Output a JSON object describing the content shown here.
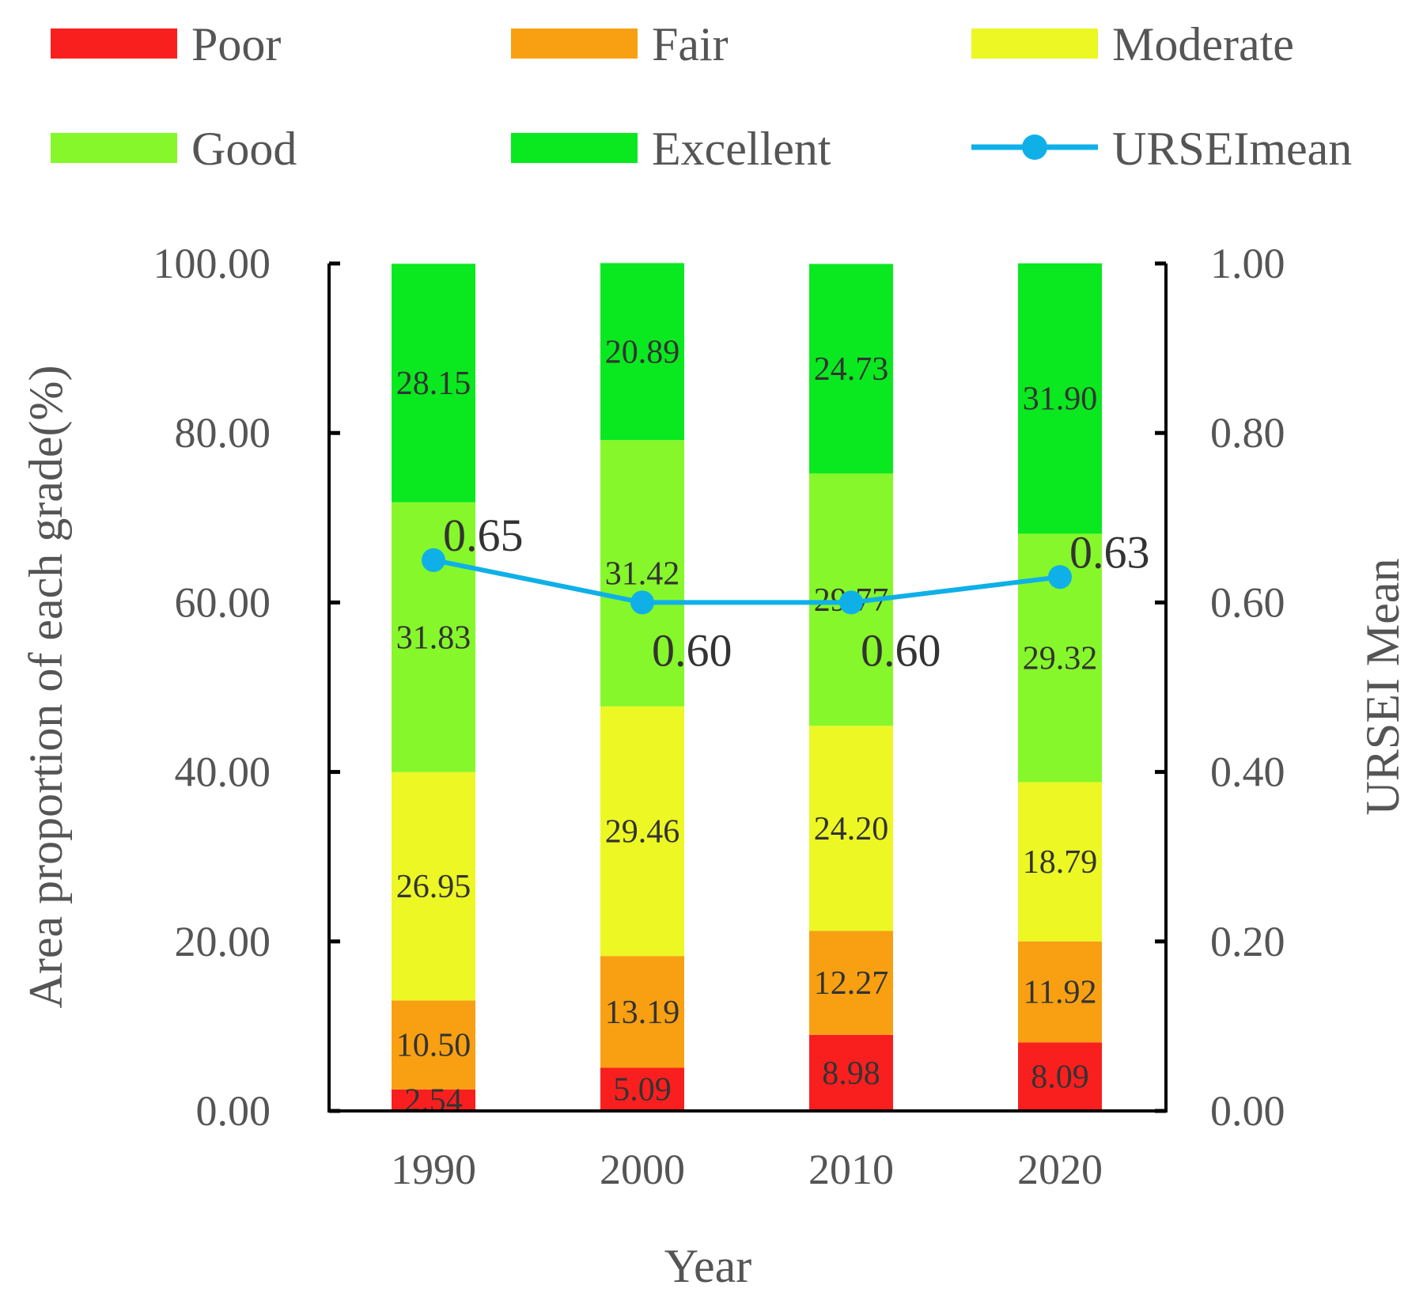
{
  "chart_data": {
    "type": "bar",
    "stacked": true,
    "categories": [
      "1990",
      "2000",
      "2010",
      "2020"
    ],
    "series": [
      {
        "name": "Poor",
        "color": "#f91f1f",
        "values": [
          2.54,
          5.09,
          8.98,
          8.09
        ]
      },
      {
        "name": "Fair",
        "color": "#f8a012",
        "values": [
          10.5,
          13.19,
          12.27,
          11.92
        ]
      },
      {
        "name": "Moderate",
        "color": "#ecf724",
        "values": [
          26.95,
          29.46,
          24.2,
          18.79
        ]
      },
      {
        "name": "Good",
        "color": "#86f72a",
        "values": [
          31.83,
          31.42,
          29.77,
          29.32
        ]
      },
      {
        "name": "Excellent",
        "color": "#0ae81f",
        "values": [
          28.15,
          20.89,
          24.73,
          31.9
        ]
      }
    ],
    "segment_labels": [
      [
        "2.54",
        "5.09",
        "8.98",
        "8.09"
      ],
      [
        "10.50",
        "13.19",
        "12.27",
        "11.92"
      ],
      [
        "26.95",
        "29.46",
        "24.20",
        "18.79"
      ],
      [
        "31.83",
        "31.42",
        "29.77",
        "29.32"
      ],
      [
        "28.15",
        "20.89",
        "24.73",
        "31.90"
      ]
    ],
    "line_series": {
      "name": "URSEImean",
      "color": "#0fb0e8",
      "values": [
        0.65,
        0.6,
        0.6,
        0.63
      ],
      "labels": [
        "0.65",
        "0.60",
        "0.60",
        "0.63"
      ],
      "axis": "right"
    },
    "xlabel": "Year",
    "ylabel": "Area proportion of each grade(%)",
    "y2label": "URSEI Mean",
    "ylim": [
      0,
      100
    ],
    "y2lim": [
      0,
      1
    ],
    "yticks": [
      "0.00",
      "20.00",
      "40.00",
      "60.00",
      "80.00",
      "100.00"
    ],
    "y2ticks": [
      "0.00",
      "0.20",
      "0.40",
      "0.60",
      "0.80",
      "1.00"
    ],
    "legend_position": "top",
    "grid": false
  }
}
